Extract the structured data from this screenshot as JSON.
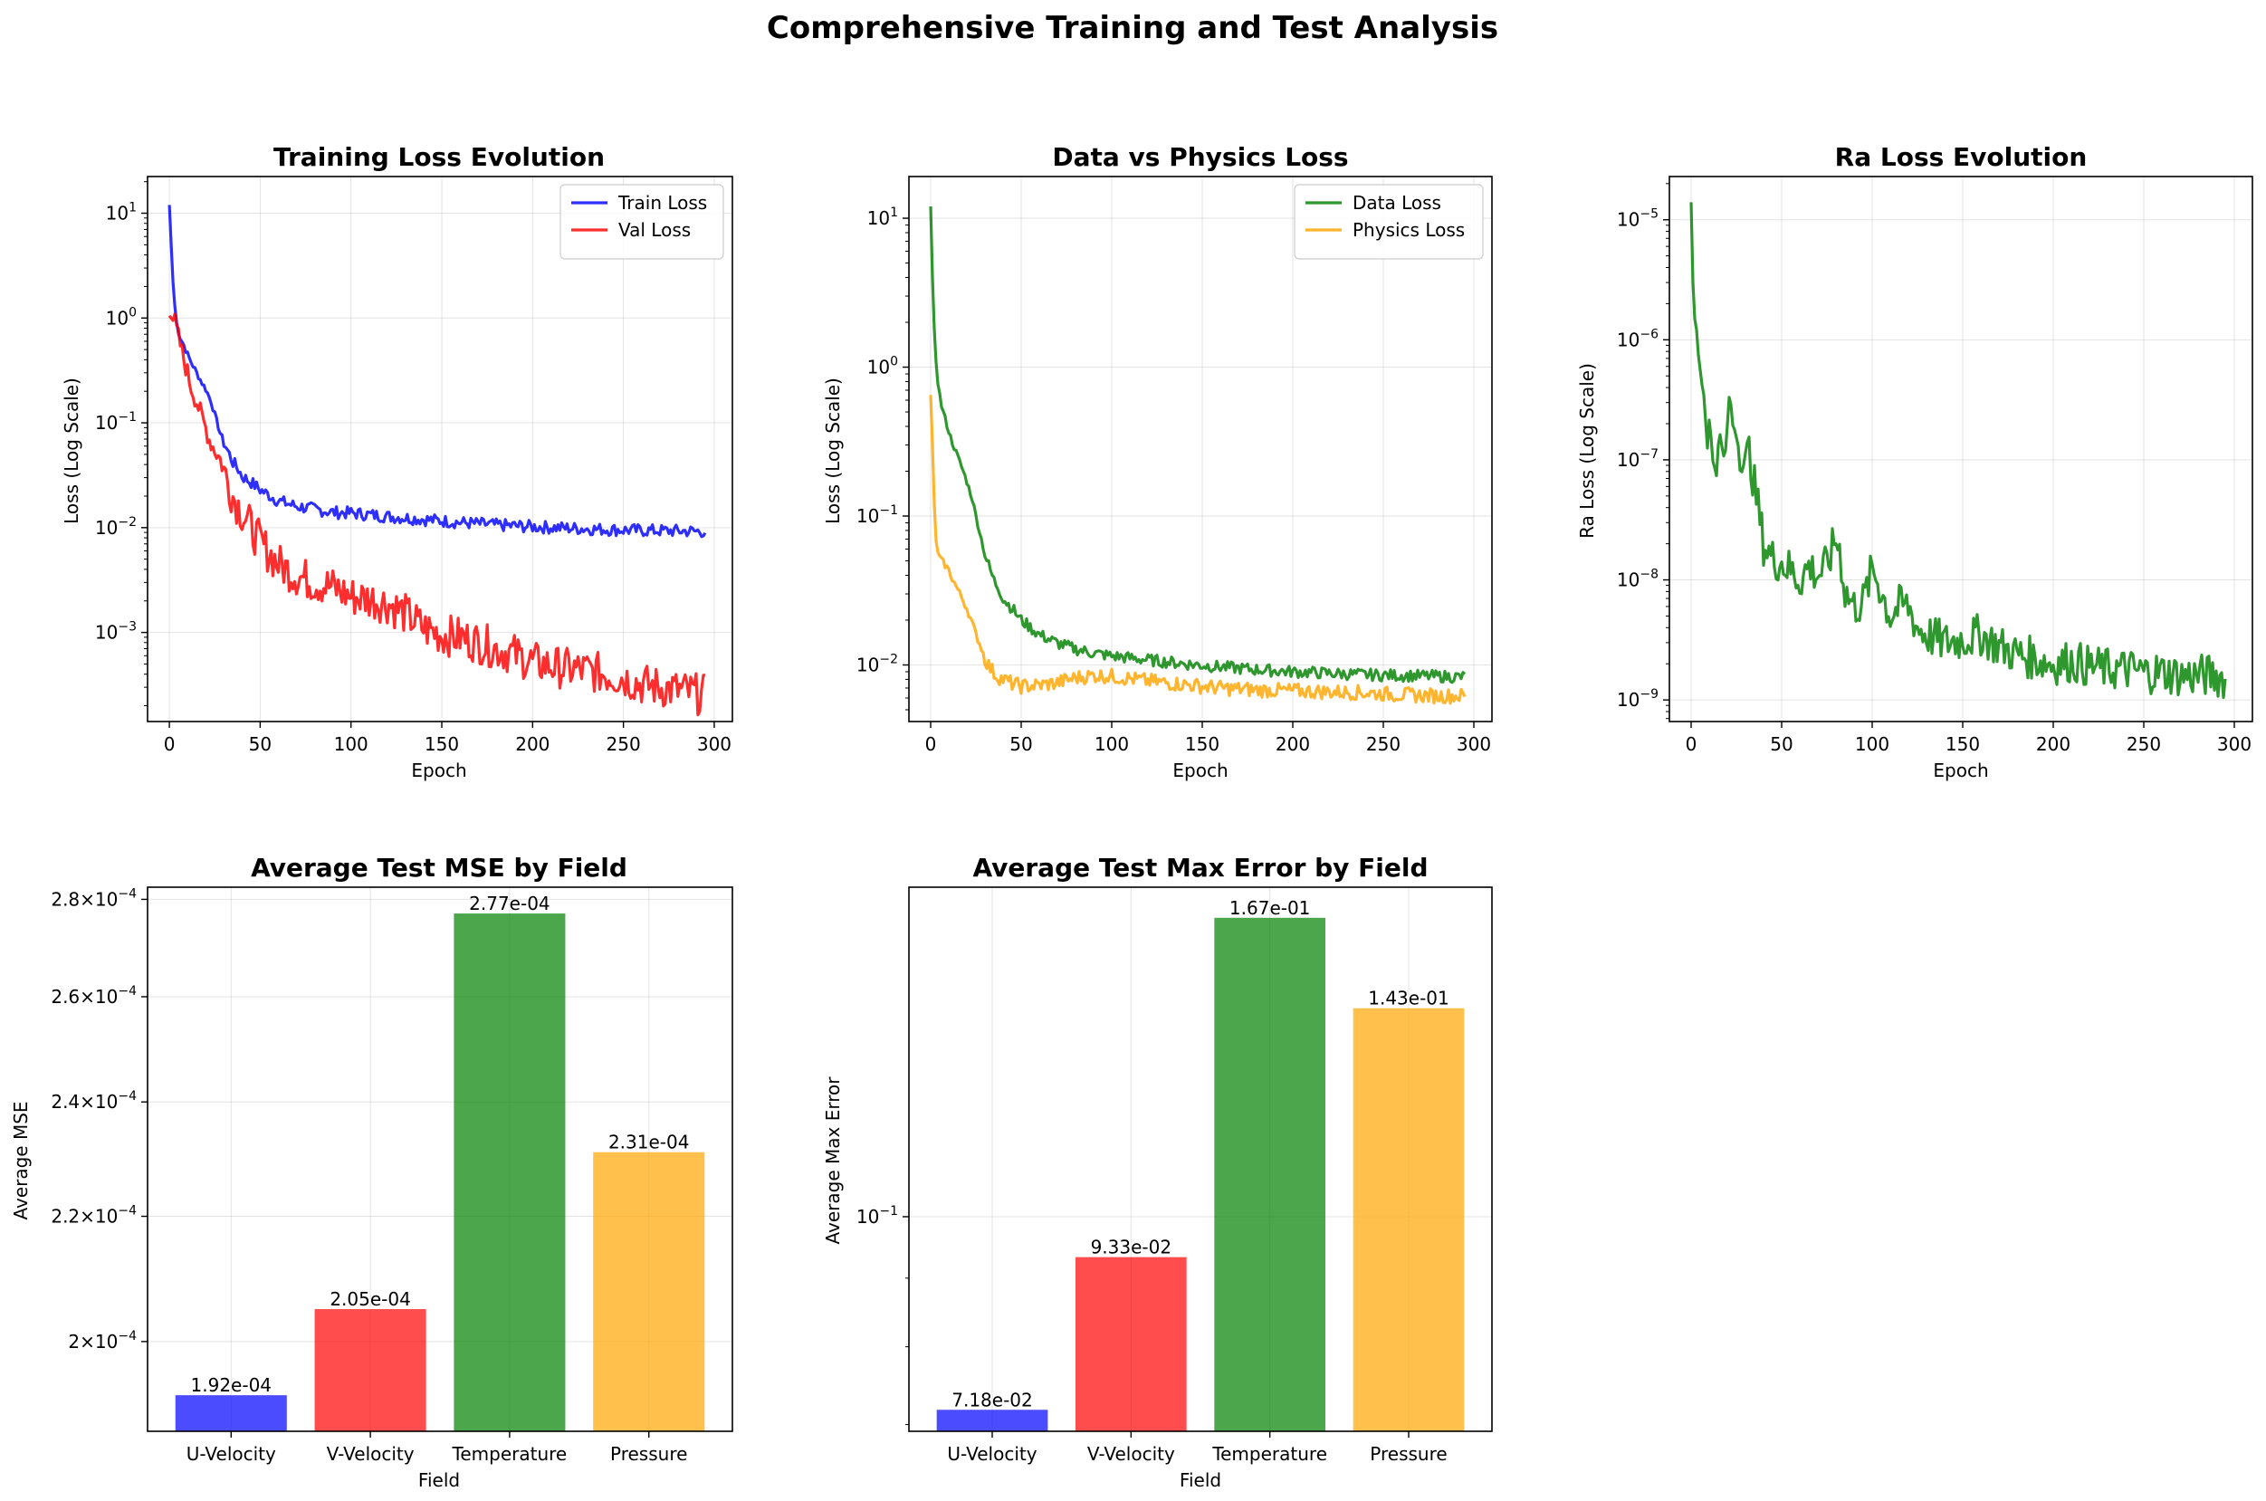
{
  "figure": {
    "title": "Comprehensive Training and Test Analysis"
  },
  "colors": {
    "blue": "#0000ff",
    "red": "#ff0000",
    "green": "#008000",
    "orange": "#ffa500"
  },
  "chart_data": [
    {
      "id": "train",
      "type": "line",
      "title": "Training Loss Evolution",
      "xlabel": "Epoch",
      "ylabel": "Loss (Log Scale)",
      "yscale": "log",
      "xlim": [
        -12,
        310
      ],
      "ylim_exp": [
        -3.85,
        1.35
      ],
      "xticks": [
        0,
        50,
        100,
        150,
        200,
        250,
        300
      ],
      "yticks": [
        {
          "exp": 1,
          "label": "10^1"
        },
        {
          "exp": 0,
          "label": "10^0"
        },
        {
          "exp": -1,
          "label": "10^-1"
        },
        {
          "exp": -2,
          "label": "10^-2"
        },
        {
          "exp": -3,
          "label": "10^-3"
        }
      ],
      "grid": true,
      "legend": "upper right",
      "series": [
        {
          "name": "Train Loss",
          "color": "#0000ff",
          "x": [
            0,
            1,
            2,
            3,
            4,
            5,
            6,
            8,
            10,
            12,
            15,
            18,
            20,
            23,
            25,
            28,
            30,
            33,
            35,
            38,
            40,
            45,
            50,
            60,
            70,
            80,
            90,
            100,
            120,
            140,
            160,
            180,
            200,
            220,
            240,
            260,
            280,
            295
          ],
          "y": [
            12,
            5,
            2.2,
            1.3,
            0.9,
            0.75,
            0.65,
            0.55,
            0.45,
            0.38,
            0.3,
            0.24,
            0.21,
            0.16,
            0.12,
            0.08,
            0.065,
            0.05,
            0.042,
            0.036,
            0.031,
            0.027,
            0.023,
            0.018,
            0.016,
            0.015,
            0.014,
            0.0138,
            0.0128,
            0.012,
            0.0112,
            0.0106,
            0.0102,
            0.0099,
            0.0096,
            0.0094,
            0.0093,
            0.0092
          ],
          "noise": 0.06
        },
        {
          "name": "Val Loss",
          "color": "#ff0000",
          "x": [
            0,
            3,
            5,
            8,
            10,
            12,
            15,
            18,
            20,
            22,
            25,
            28,
            30,
            33,
            35,
            40,
            45,
            50,
            60,
            70,
            80,
            90,
            100,
            110,
            120,
            130,
            140,
            150,
            160,
            170,
            180,
            190,
            200,
            210,
            220,
            230,
            240,
            250,
            260,
            270,
            280,
            290,
            295
          ],
          "y": [
            1.05,
            0.9,
            0.65,
            0.4,
            0.3,
            0.22,
            0.16,
            0.11,
            0.09,
            0.07,
            0.055,
            0.045,
            0.035,
            0.025,
            0.02,
            0.014,
            0.01,
            0.0072,
            0.0045,
            0.0035,
            0.003,
            0.0027,
            0.0022,
            0.0021,
            0.0019,
            0.0015,
            0.0011,
            0.00095,
            0.0009,
            0.0008,
            0.0007,
            0.00062,
            0.00052,
            0.00048,
            0.00045,
            0.00043,
            0.0004,
            0.00037,
            0.00032,
            0.0003,
            0.00028,
            0.00026,
            0.00025
          ],
          "noise": 0.2
        }
      ]
    },
    {
      "id": "physics",
      "type": "line",
      "title": "Data vs Physics Loss",
      "xlabel": "Epoch",
      "ylabel": "Loss (Log Scale)",
      "yscale": "log",
      "xlim": [
        -12,
        310
      ],
      "ylim_exp": [
        -2.38,
        1.28
      ],
      "xticks": [
        0,
        50,
        100,
        150,
        200,
        250,
        300
      ],
      "yticks": [
        {
          "exp": 1,
          "label": "10^1"
        },
        {
          "exp": 0,
          "label": "10^0"
        },
        {
          "exp": -1,
          "label": "10^-1"
        },
        {
          "exp": -2,
          "label": "10^-2"
        }
      ],
      "grid": true,
      "legend": "upper right",
      "series": [
        {
          "name": "Data Loss",
          "color": "#008000",
          "x": [
            0,
            1,
            2,
            3,
            4,
            5,
            6,
            8,
            10,
            12,
            15,
            18,
            20,
            23,
            25,
            28,
            30,
            33,
            35,
            38,
            40,
            45,
            50,
            60,
            70,
            80,
            90,
            100,
            120,
            140,
            160,
            180,
            200,
            220,
            240,
            260,
            280,
            295
          ],
          "y": [
            12,
            4,
            1.8,
            1.1,
            0.8,
            0.65,
            0.55,
            0.45,
            0.37,
            0.31,
            0.25,
            0.2,
            0.17,
            0.13,
            0.1,
            0.07,
            0.055,
            0.043,
            0.037,
            0.032,
            0.028,
            0.024,
            0.02,
            0.016,
            0.014,
            0.0128,
            0.012,
            0.0115,
            0.0108,
            0.0102,
            0.0097,
            0.0093,
            0.009,
            0.0088,
            0.0086,
            0.0085,
            0.0084,
            0.0083
          ],
          "noise": 0.04
        },
        {
          "name": "Physics Loss",
          "color": "#ffa500",
          "x": [
            0,
            1,
            2,
            3,
            4,
            6,
            8,
            10,
            12,
            15,
            18,
            20,
            23,
            25,
            28,
            30,
            33,
            36,
            40,
            45,
            50,
            60,
            70,
            80,
            90,
            100,
            120,
            140,
            160,
            180,
            200,
            220,
            240,
            260,
            280,
            295
          ],
          "y": [
            0.65,
            0.3,
            0.12,
            0.07,
            0.055,
            0.05,
            0.047,
            0.043,
            0.038,
            0.032,
            0.027,
            0.024,
            0.019,
            0.016,
            0.013,
            0.011,
            0.0095,
            0.0085,
            0.008,
            0.0075,
            0.0072,
            0.0073,
            0.0076,
            0.0082,
            0.0085,
            0.0084,
            0.0078,
            0.0074,
            0.007,
            0.0068,
            0.0067,
            0.0066,
            0.0065,
            0.0063,
            0.0062,
            0.0062
          ],
          "noise": 0.05
        }
      ]
    },
    {
      "id": "ra",
      "type": "line",
      "title": "Ra Loss Evolution",
      "xlabel": "Epoch",
      "ylabel": "Ra Loss (Log Scale)",
      "yscale": "log",
      "xlim": [
        -12,
        310
      ],
      "ylim_exp": [
        -9.18,
        -4.64
      ],
      "xticks": [
        0,
        50,
        100,
        150,
        200,
        250,
        300
      ],
      "yticks": [
        {
          "exp": -5,
          "label": "10^-5"
        },
        {
          "exp": -6,
          "label": "10^-6"
        },
        {
          "exp": -7,
          "label": "10^-7"
        },
        {
          "exp": -8,
          "label": "10^-8"
        },
        {
          "exp": -9,
          "label": "10^-9"
        }
      ],
      "grid": true,
      "legend": "none",
      "series": [
        {
          "name": "",
          "color": "#008000",
          "x": [
            0,
            1,
            2,
            3,
            5,
            7,
            9,
            10,
            12,
            14,
            16,
            18,
            20,
            21,
            23,
            25,
            27,
            30,
            32,
            35,
            37,
            40,
            45,
            50,
            55,
            60,
            65,
            70,
            75,
            80,
            82,
            85,
            90,
            95,
            100,
            102,
            105,
            110,
            115,
            120,
            125,
            130,
            140,
            150,
            160,
            170,
            180,
            190,
            200,
            210,
            220,
            230,
            240,
            250,
            260,
            270,
            280,
            290,
            295
          ],
          "y": [
            1.4e-05,
            3e-06,
            1.5e-06,
            1.1e-06,
            6e-07,
            3.5e-07,
            1.5e-07,
            2e-07,
            1e-07,
            9e-08,
            1.5e-07,
            1e-07,
            1.6e-07,
            3.5e-07,
            2e-07,
            1.8e-07,
            1e-07,
            9e-08,
            1.2e-07,
            6e-08,
            4e-08,
            2e-08,
            1.5e-08,
            1.4e-08,
            1.2e-08,
            1e-08,
            1.3e-08,
            1.1e-08,
            1.3e-08,
            2.2e-08,
            1.8e-08,
            8e-09,
            6e-09,
            6.5e-09,
            1.2e-08,
            1.1e-08,
            8e-09,
            5e-09,
            6e-09,
            6e-09,
            4e-09,
            3.5e-09,
            3e-09,
            3.2e-09,
            3.5e-09,
            2.8e-09,
            2.4e-09,
            2.2e-09,
            2e-09,
            2.1e-09,
            1.9e-09,
            1.8e-09,
            1.8e-09,
            1.7e-09,
            1.7e-09,
            1.6e-09,
            1.6e-09,
            1.6e-09,
            1.5e-09
          ],
          "noise": 0.18
        }
      ]
    },
    {
      "id": "mse",
      "type": "bar",
      "title": "Average Test MSE by Field",
      "xlabel": "Field",
      "ylabel": "Average MSE",
      "yscale": "log",
      "ylim": [
        0.0001868,
        0.0002826
      ],
      "categories": [
        "U-Velocity",
        "V-Velocity",
        "Temperature",
        "Pressure"
      ],
      "values": [
        0.000192,
        0.000205,
        0.000277,
        0.000231
      ],
      "labels": [
        "1.92e-04",
        "2.05e-04",
        "2.77e-04",
        "2.31e-04"
      ],
      "colors": [
        "#0000ff",
        "#ff0000",
        "#008000",
        "#ffa500"
      ],
      "yticks": [
        {
          "value": 0.0002,
          "mant": "2",
          "exp": "-4"
        },
        {
          "value": 0.00022,
          "mant": "2.2",
          "exp": "-4"
        },
        {
          "value": 0.00024,
          "mant": "2.4",
          "exp": "-4"
        },
        {
          "value": 0.00026,
          "mant": "2.6",
          "exp": "-4"
        },
        {
          "value": 0.00028,
          "mant": "2.8",
          "exp": "-4"
        }
      ],
      "grid": true
    },
    {
      "id": "maxerr",
      "type": "bar",
      "title": "Average Test Max Error by Field",
      "xlabel": "Field",
      "ylabel": "Average Max Error",
      "yscale": "log",
      "ylim": [
        0.0692,
        0.176
      ],
      "categories": [
        "U-Velocity",
        "V-Velocity",
        "Temperature",
        "Pressure"
      ],
      "values": [
        0.0718,
        0.0933,
        0.167,
        0.143
      ],
      "labels": [
        "7.18e-02",
        "9.33e-02",
        "1.67e-01",
        "1.43e-01"
      ],
      "colors": [
        "#0000ff",
        "#ff0000",
        "#008000",
        "#ffa500"
      ],
      "yticks": [
        {
          "value": 0.1,
          "mant": "10",
          "exp": "-1",
          "nomant": true
        }
      ],
      "grid": true
    }
  ]
}
